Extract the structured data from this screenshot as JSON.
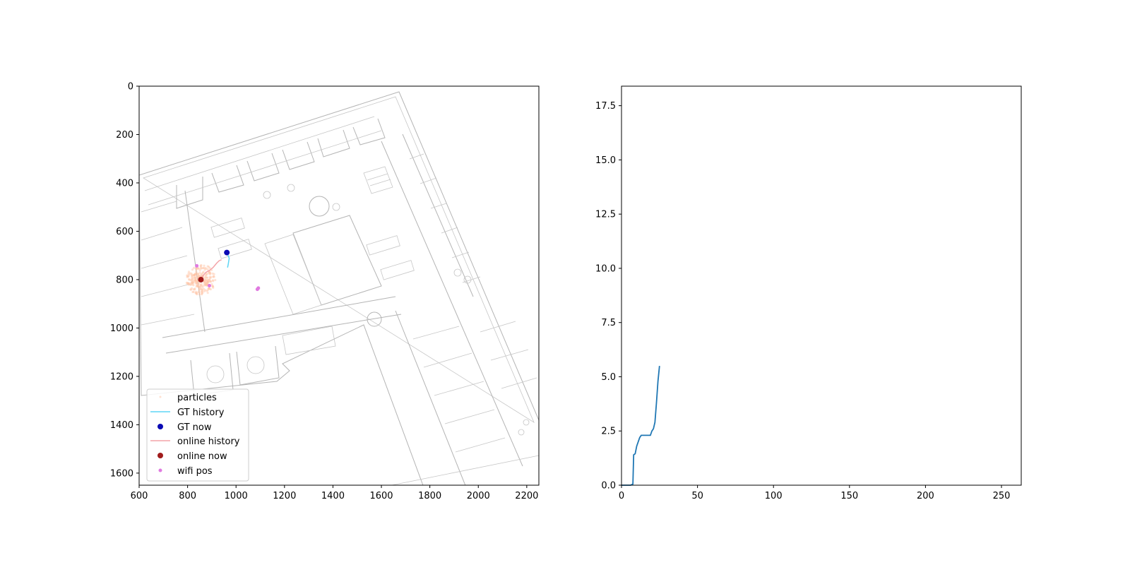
{
  "chart_data": [
    {
      "type": "scatter",
      "title": "",
      "xlabel": "",
      "ylabel": "",
      "xlim": [
        600,
        2250
      ],
      "ylim": [
        1650,
        0
      ],
      "y_inverted": true,
      "x_ticks": [
        600,
        800,
        1000,
        1200,
        1400,
        1600,
        1800,
        2000,
        2200
      ],
      "x_tick_labels": [
        "600",
        "800",
        "1000",
        "1200",
        "1400",
        "1600",
        "1800",
        "2000",
        "2200"
      ],
      "y_ticks": [
        0,
        200,
        400,
        600,
        800,
        1000,
        1200,
        1400,
        1600
      ],
      "y_tick_labels": [
        "0",
        "200",
        "400",
        "600",
        "800",
        "1000",
        "1200",
        "1400",
        "1600"
      ],
      "background": "floor-plan",
      "legend_position": "lower-left",
      "legend": [
        "particles",
        "GT history",
        "GT now",
        "online history",
        "online now",
        "wifi pos"
      ],
      "series": [
        {
          "name": "particles",
          "kind": "scatter",
          "color": "#ffc4a3",
          "center": [
            855,
            800
          ],
          "spread": 60
        },
        {
          "name": "GT history",
          "kind": "line",
          "color": "#5ed6f5",
          "x": [
            965,
            968,
            970,
            972,
            968,
            966,
            962
          ],
          "y": [
            750,
            735,
            722,
            712,
            702,
            694,
            688
          ]
        },
        {
          "name": "GT now",
          "kind": "point",
          "color": "#0a0ab4",
          "x": [
            962
          ],
          "y": [
            688
          ]
        },
        {
          "name": "online history",
          "kind": "line",
          "color": "#f4a3a8",
          "x": [
            855,
            862,
            875,
            890,
            905,
            920,
            930,
            940
          ],
          "y": [
            800,
            786,
            770,
            762,
            750,
            732,
            722,
            718
          ]
        },
        {
          "name": "online now",
          "kind": "point",
          "color": "#a01c1c",
          "x": [
            855
          ],
          "y": [
            800
          ]
        },
        {
          "name": "wifi pos",
          "kind": "scatter",
          "color": "#e07ae0",
          "x": [
            838,
            890,
            1088,
            1092
          ],
          "y": [
            743,
            825,
            840,
            835
          ]
        }
      ]
    },
    {
      "type": "line",
      "title": "",
      "xlabel": "",
      "ylabel": "",
      "xlim": [
        0,
        263
      ],
      "ylim": [
        0,
        18.4
      ],
      "x_ticks": [
        0,
        50,
        100,
        150,
        200,
        250
      ],
      "x_tick_labels": [
        "0",
        "50",
        "100",
        "150",
        "200",
        "250"
      ],
      "y_ticks": [
        0,
        2.5,
        5,
        7.5,
        10,
        12.5,
        15,
        17.5
      ],
      "y_tick_labels": [
        "0.0",
        "2.5",
        "5.0",
        "7.5",
        "10.0",
        "12.5",
        "15.0",
        "17.5"
      ],
      "series": [
        {
          "name": "",
          "color": "#1f77b4",
          "x": [
            0,
            2,
            4,
            6,
            7.5,
            8,
            9,
            10,
            11,
            12,
            13,
            14,
            15,
            17,
            19,
            20,
            21,
            22,
            23,
            24,
            25
          ],
          "y": [
            0,
            0,
            0,
            0,
            0.05,
            1.4,
            1.45,
            1.8,
            2.0,
            2.2,
            2.3,
            2.3,
            2.3,
            2.3,
            2.3,
            2.5,
            2.6,
            2.9,
            3.8,
            4.8,
            5.5
          ]
        }
      ]
    }
  ]
}
